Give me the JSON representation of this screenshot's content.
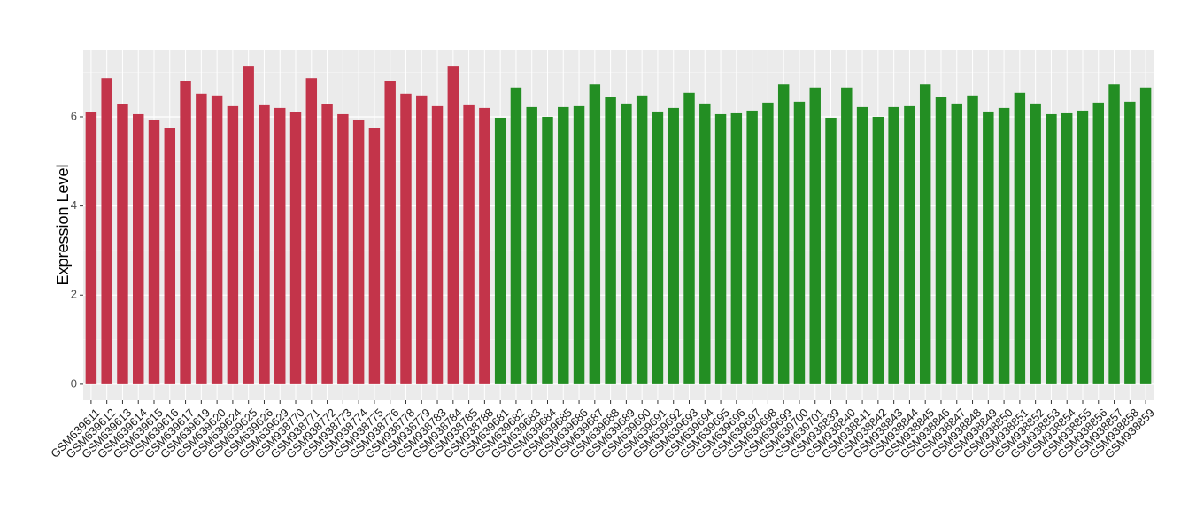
{
  "chart_data": {
    "type": "bar",
    "y_label": "Expression Level",
    "categories": [
      "GSM639611",
      "GSM639612",
      "GSM639613",
      "GSM639614",
      "GSM639615",
      "GSM639616",
      "GSM639617",
      "GSM639619",
      "GSM639620",
      "GSM639624",
      "GSM639625",
      "GSM639626",
      "GSM639629",
      "GSM938770",
      "GSM938771",
      "GSM938772",
      "GSM938773",
      "GSM938774",
      "GSM938775",
      "GSM938776",
      "GSM938778",
      "GSM938779",
      "GSM938783",
      "GSM938784",
      "GSM938785",
      "GSM938788",
      "GSM639681",
      "GSM639682",
      "GSM639683",
      "GSM639684",
      "GSM639685",
      "GSM639686",
      "GSM639687",
      "GSM639688",
      "GSM639689",
      "GSM639690",
      "GSM639691",
      "GSM639692",
      "GSM639693",
      "GSM639694",
      "GSM639695",
      "GSM639696",
      "GSM639697",
      "GSM639698",
      "GSM639699",
      "GSM639700",
      "GSM639701",
      "GSM938839",
      "GSM938840",
      "GSM938841",
      "GSM938842",
      "GSM938843",
      "GSM938844",
      "GSM938845",
      "GSM938846",
      "GSM938847",
      "GSM938848",
      "GSM938849",
      "GSM938850",
      "GSM938851",
      "GSM938852",
      "GSM938853",
      "GSM938854",
      "GSM938855",
      "GSM938856",
      "GSM938857",
      "GSM938858",
      "GSM938859"
    ],
    "values": [
      6.1,
      6.87,
      6.28,
      6.06,
      5.94,
      5.76,
      6.8,
      6.52,
      6.48,
      6.24,
      7.13,
      6.26,
      6.2,
      6.1,
      6.87,
      6.28,
      6.06,
      5.94,
      5.76,
      6.8,
      6.52,
      6.48,
      6.24,
      7.13,
      6.26,
      6.2,
      5.98,
      6.66,
      6.22,
      6.0,
      6.22,
      6.24,
      6.73,
      6.44,
      6.3,
      6.48,
      6.12,
      6.2,
      6.54,
      6.3,
      6.06,
      6.08,
      6.14,
      6.32,
      6.73,
      6.34,
      6.66,
      5.98,
      6.66,
      6.22,
      6.0,
      6.22,
      6.24,
      6.73,
      6.44,
      6.3,
      6.48,
      6.12,
      6.2,
      6.54,
      6.3,
      6.06,
      6.08,
      6.14,
      6.32,
      6.73,
      6.34,
      6.66
    ],
    "colors": [
      "#c3344a",
      "#c3344a",
      "#c3344a",
      "#c3344a",
      "#c3344a",
      "#c3344a",
      "#c3344a",
      "#c3344a",
      "#c3344a",
      "#c3344a",
      "#c3344a",
      "#c3344a",
      "#c3344a",
      "#c3344a",
      "#c3344a",
      "#c3344a",
      "#c3344a",
      "#c3344a",
      "#c3344a",
      "#c3344a",
      "#c3344a",
      "#c3344a",
      "#c3344a",
      "#c3344a",
      "#c3344a",
      "#c3344a",
      "#238e23",
      "#238e23",
      "#238e23",
      "#238e23",
      "#238e23",
      "#238e23",
      "#238e23",
      "#238e23",
      "#238e23",
      "#238e23",
      "#238e23",
      "#238e23",
      "#238e23",
      "#238e23",
      "#238e23",
      "#238e23",
      "#238e23",
      "#238e23",
      "#238e23",
      "#238e23",
      "#238e23",
      "#238e23",
      "#238e23",
      "#238e23",
      "#238e23",
      "#238e23",
      "#238e23",
      "#238e23",
      "#238e23",
      "#238e23",
      "#238e23",
      "#238e23",
      "#238e23",
      "#238e23",
      "#238e23",
      "#238e23",
      "#238e23",
      "#238e23",
      "#238e23",
      "#238e23",
      "#238e23",
      "#238e23"
    ],
    "ylim": [
      -0.36,
      7.49
    ],
    "yticks": [
      0,
      2,
      4,
      6
    ],
    "grid": true
  }
}
